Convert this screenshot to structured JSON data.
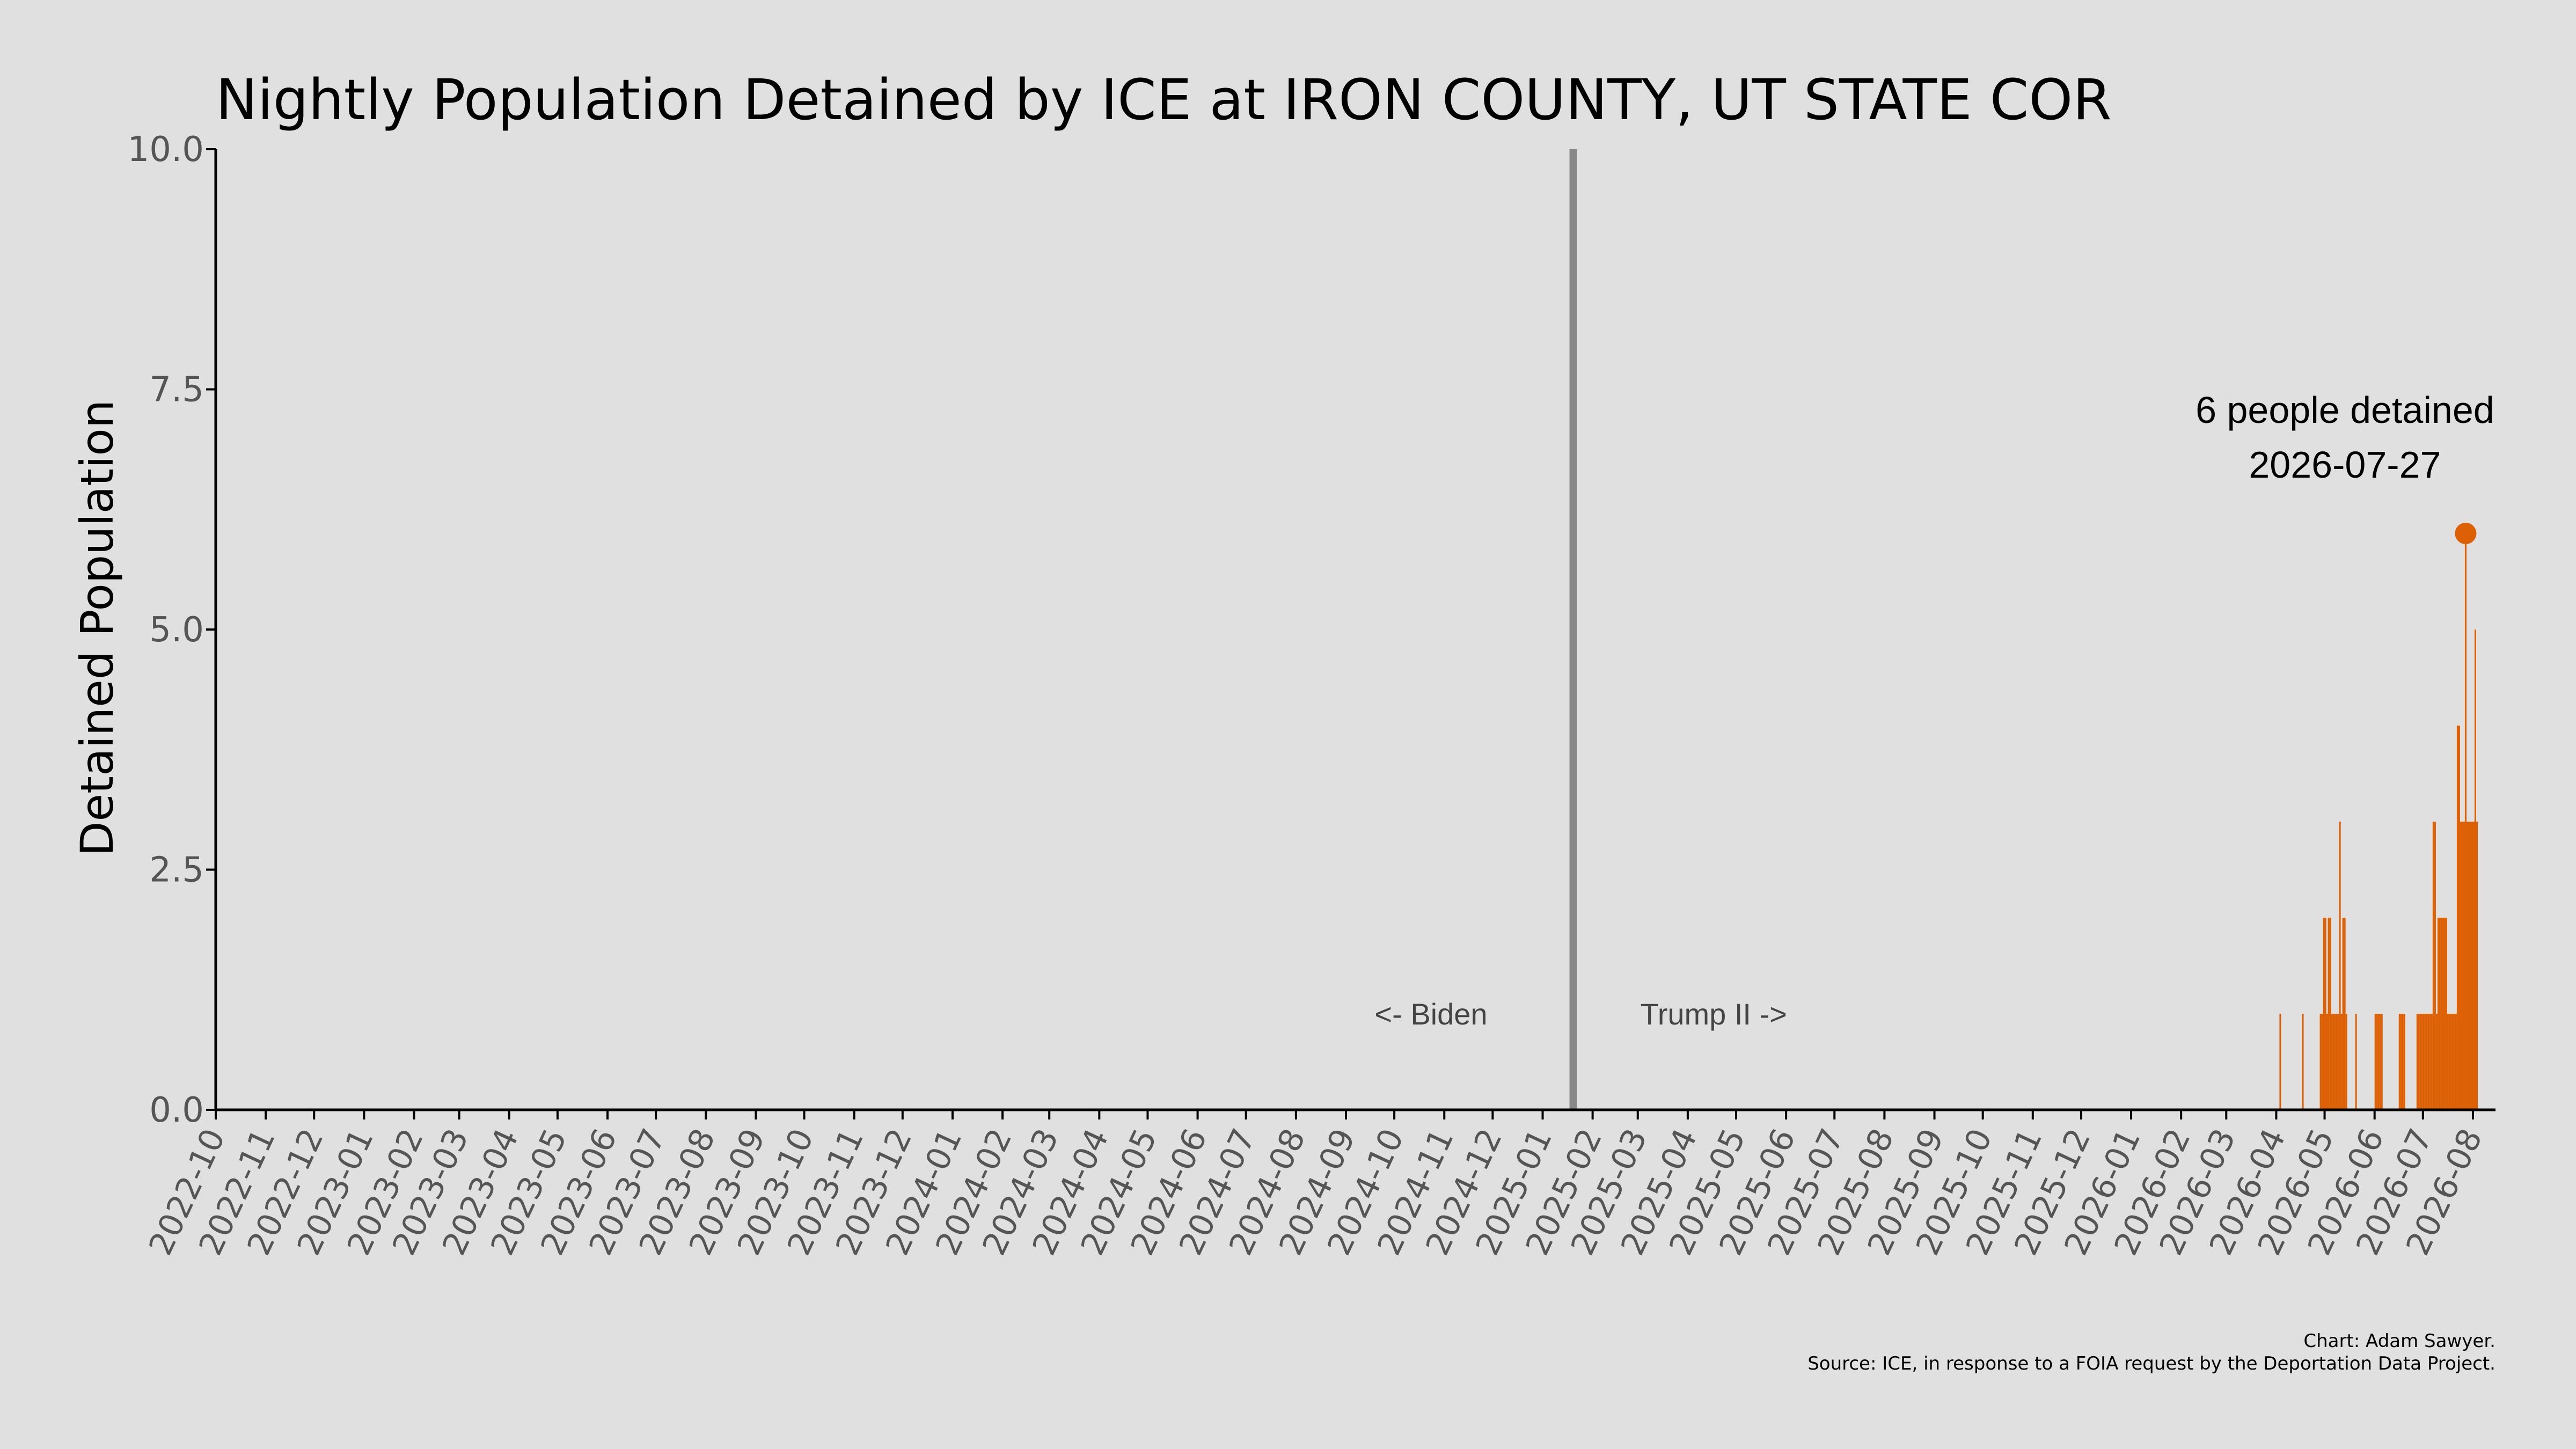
{
  "chart_data": {
    "type": "bar",
    "title": "Nightly Population Detained by ICE at IRON COUNTY, UT STATE COR",
    "ylabel": "Detained Population",
    "xlabel": "",
    "ylim": [
      0,
      10
    ],
    "xlim": [
      "2022-10-01",
      "2026-08-15"
    ],
    "yticks": [
      "0.0",
      "2.5",
      "5.0",
      "7.5",
      "10.0"
    ],
    "xticks": [
      "2022-10",
      "2022-11",
      "2022-12",
      "2023-01",
      "2023-02",
      "2023-03",
      "2023-04",
      "2023-05",
      "2023-06",
      "2023-07",
      "2023-08",
      "2023-09",
      "2023-10",
      "2023-11",
      "2023-12",
      "2024-01",
      "2024-02",
      "2024-03",
      "2024-04",
      "2024-05",
      "2024-06",
      "2024-07",
      "2024-08",
      "2024-09",
      "2024-10",
      "2024-11",
      "2024-12",
      "2025-01",
      "2025-02",
      "2025-03",
      "2025-04",
      "2025-05",
      "2025-06",
      "2025-07",
      "2025-08",
      "2025-09",
      "2025-10",
      "2025-11",
      "2025-12",
      "2026-01",
      "2026-02",
      "2026-03",
      "2026-04",
      "2026-05",
      "2026-06",
      "2026-07",
      "2026-08"
    ],
    "series": [
      {
        "color": "#dd6005",
        "points": [
          [
            "2026-04-03",
            1
          ],
          [
            "2026-04-17",
            1
          ],
          [
            "2026-04-28",
            1
          ],
          [
            "2026-04-29",
            1
          ],
          [
            "2026-04-30",
            2
          ],
          [
            "2026-05-01",
            2
          ],
          [
            "2026-05-02",
            1
          ],
          [
            "2026-05-03",
            2
          ],
          [
            "2026-05-04",
            2
          ],
          [
            "2026-05-05",
            1
          ],
          [
            "2026-05-06",
            1
          ],
          [
            "2026-05-07",
            1
          ],
          [
            "2026-05-08",
            1
          ],
          [
            "2026-05-09",
            1
          ],
          [
            "2026-05-10",
            3
          ],
          [
            "2026-05-11",
            1
          ],
          [
            "2026-05-12",
            2
          ],
          [
            "2026-05-13",
            2
          ],
          [
            "2026-05-14",
            1
          ],
          [
            "2026-05-20",
            1
          ],
          [
            "2026-06-01",
            1
          ],
          [
            "2026-06-02",
            1
          ],
          [
            "2026-06-03",
            1
          ],
          [
            "2026-06-04",
            1
          ],
          [
            "2026-06-05",
            1
          ],
          [
            "2026-06-16",
            1
          ],
          [
            "2026-06-17",
            1
          ],
          [
            "2026-06-18",
            1
          ],
          [
            "2026-06-19",
            1
          ],
          [
            "2026-06-27",
            1
          ],
          [
            "2026-06-28",
            1
          ],
          [
            "2026-06-29",
            1
          ],
          [
            "2026-06-30",
            1
          ],
          [
            "2026-07-01",
            1
          ],
          [
            "2026-07-02",
            1
          ],
          [
            "2026-07-03",
            1
          ],
          [
            "2026-07-04",
            1
          ],
          [
            "2026-07-05",
            1
          ],
          [
            "2026-07-06",
            1
          ],
          [
            "2026-07-07",
            3
          ],
          [
            "2026-07-08",
            3
          ],
          [
            "2026-07-09",
            1
          ],
          [
            "2026-07-10",
            2
          ],
          [
            "2026-07-11",
            2
          ],
          [
            "2026-07-12",
            2
          ],
          [
            "2026-07-13",
            2
          ],
          [
            "2026-07-14",
            2
          ],
          [
            "2026-07-15",
            2
          ],
          [
            "2026-07-16",
            1
          ],
          [
            "2026-07-17",
            1
          ],
          [
            "2026-07-18",
            1
          ],
          [
            "2026-07-19",
            1
          ],
          [
            "2026-07-20",
            1
          ],
          [
            "2026-07-21",
            1
          ],
          [
            "2026-07-22",
            4
          ],
          [
            "2026-07-23",
            4
          ],
          [
            "2026-07-24",
            3
          ],
          [
            "2026-07-25",
            3
          ],
          [
            "2026-07-26",
            3
          ],
          [
            "2026-07-27",
            6
          ],
          [
            "2026-07-28",
            3
          ],
          [
            "2026-07-29",
            3
          ],
          [
            "2026-07-30",
            3
          ],
          [
            "2026-07-31",
            3
          ],
          [
            "2026-08-01",
            3
          ],
          [
            "2026-08-02",
            5
          ],
          [
            "2026-08-03",
            3
          ]
        ]
      }
    ],
    "divider": {
      "date": "2025-01-20",
      "color": "#888888"
    },
    "left_annotation": "<- Biden",
    "right_annotation": "Trump II ->",
    "peak": {
      "date": "2026-07-27",
      "value": 6,
      "line1": "6 people detained",
      "line2": "2026-07-27"
    },
    "grid": false,
    "legend": "none"
  },
  "footer": {
    "credit": "Chart: Adam Sawyer.",
    "source": "Source: ICE, in response to a FOIA request by the Deportation Data Project."
  }
}
